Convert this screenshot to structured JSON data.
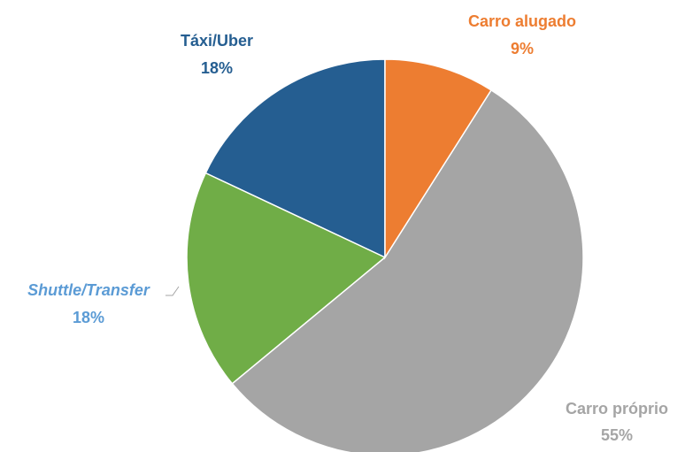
{
  "chart_data": {
    "type": "pie",
    "categories": [
      "Carro alugado",
      "Carro próprio",
      "Shuttle/Transfer",
      "Táxi/Uber"
    ],
    "values": [
      9,
      55,
      18,
      18
    ],
    "value_labels": [
      "9%",
      "55%",
      "18%",
      "18%"
    ],
    "colors": [
      "#ed7d31",
      "#a5a5a5",
      "#70ad47",
      "#255e91"
    ]
  }
}
